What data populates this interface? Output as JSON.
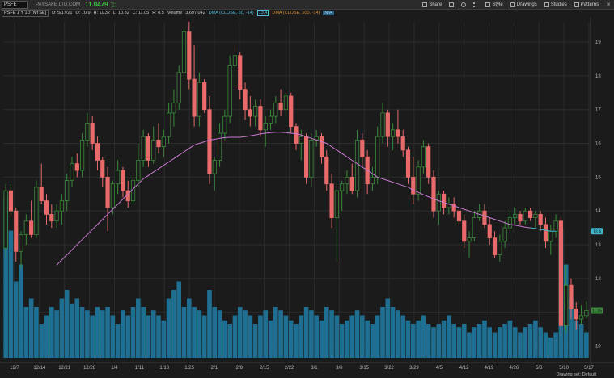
{
  "toolbar": {
    "symbol": "PSFE",
    "company": "PAYSAFE LTD.COM",
    "price": "11.0479",
    "change_top": "+0.2",
    "change_bottom": "+0.1",
    "buttons": [
      "Share",
      "Style",
      "Drawings",
      "Studies",
      "Patterns"
    ],
    "icons": [
      "share-icon",
      "bell-icon",
      "gear-icon",
      "more-icon",
      "style-icon",
      "drawings-icon",
      "studies-icon",
      "patterns-icon",
      "close-icon"
    ]
  },
  "infobar": {
    "label": "PSFE 1 Y 1D [NYSE]",
    "date": "D: 5/17/21",
    "open": "O: 10.9",
    "high": "H: 11.32",
    "low": "L: 10.82",
    "close": "C: 11.05",
    "range": "R: 0.5",
    "volume_label": "Volume",
    "volume": "3,697,042",
    "study1": "DMA (CLOSE, 50, -14)",
    "study1_value": "13.4",
    "study2": "DMA (CLOSE, 200, -14)",
    "study2_value": "N/A"
  },
  "footer": {
    "drawing_set": "Drawing set: Default"
  },
  "colors": {
    "up": "#3a8a3a",
    "down": "#e86a6a",
    "volume": "#1f6f92",
    "dma": "#c77ad0",
    "dma_tail": "#3fb6cf"
  },
  "chart_data": {
    "type": "candlestick",
    "x_tick_labels": [
      "12/7",
      "12/14",
      "12/21",
      "12/28",
      "1/4",
      "1/11",
      "1/18",
      "1/25",
      "2/1",
      "2/8",
      "2/15",
      "2/22",
      "3/1",
      "3/8",
      "3/15",
      "3/22",
      "3/29",
      "4/5",
      "4/12",
      "4/19",
      "4/26",
      "5/3",
      "5/10",
      "5/17"
    ],
    "y_ticks": [
      10,
      11,
      12,
      13,
      14,
      15,
      16,
      17,
      18,
      19
    ],
    "ylim": [
      9.7,
      19.6
    ],
    "price_tags": {
      "dma_last": "13.4",
      "last_price": "11.05"
    },
    "ohlc": [
      [
        12.9,
        14.8,
        12.6,
        14.6
      ],
      [
        14.6,
        14.8,
        13.8,
        14.0
      ],
      [
        14.0,
        14.1,
        12.5,
        12.8
      ],
      [
        12.8,
        13.4,
        12.3,
        13.3
      ],
      [
        13.3,
        13.9,
        13.0,
        13.7
      ],
      [
        13.7,
        14.3,
        13.2,
        13.3
      ],
      [
        13.3,
        14.9,
        13.2,
        14.7
      ],
      [
        14.7,
        15.4,
        14.2,
        14.3
      ],
      [
        14.3,
        14.5,
        13.6,
        13.9
      ],
      [
        13.9,
        14.2,
        13.5,
        13.7
      ],
      [
        13.7,
        14.2,
        13.5,
        14.0
      ],
      [
        14.0,
        14.5,
        13.6,
        14.3
      ],
      [
        14.3,
        15.1,
        14.0,
        14.9
      ],
      [
        14.9,
        15.6,
        14.7,
        15.4
      ],
      [
        15.4,
        15.7,
        15.0,
        15.2
      ],
      [
        15.2,
        16.3,
        15.0,
        16.1
      ],
      [
        16.1,
        16.9,
        15.9,
        16.6
      ],
      [
        16.6,
        16.8,
        15.8,
        16.0
      ],
      [
        16.0,
        16.2,
        15.2,
        15.5
      ],
      [
        15.5,
        15.6,
        14.7,
        15.0
      ],
      [
        15.0,
        15.3,
        13.4,
        14.1
      ],
      [
        14.1,
        14.9,
        13.9,
        14.8
      ],
      [
        14.8,
        15.5,
        14.5,
        15.2
      ],
      [
        15.2,
        15.3,
        14.4,
        14.6
      ],
      [
        14.6,
        14.9,
        14.1,
        14.3
      ],
      [
        14.3,
        15.1,
        14.2,
        14.9
      ],
      [
        14.9,
        16.0,
        14.7,
        15.5
      ],
      [
        15.5,
        16.4,
        15.3,
        16.2
      ],
      [
        16.2,
        16.3,
        15.3,
        15.5
      ],
      [
        15.5,
        16.5,
        15.4,
        16.1
      ],
      [
        16.1,
        16.6,
        15.7,
        15.9
      ],
      [
        15.9,
        16.4,
        15.6,
        16.2
      ],
      [
        16.2,
        17.2,
        16.0,
        16.9
      ],
      [
        16.9,
        17.6,
        16.5,
        17.2
      ],
      [
        17.2,
        18.3,
        17.0,
        18.1
      ],
      [
        18.1,
        19.4,
        17.9,
        19.3
      ],
      [
        19.3,
        19.6,
        17.6,
        17.9
      ],
      [
        17.9,
        18.9,
        16.5,
        16.8
      ],
      [
        16.8,
        18.1,
        16.5,
        17.8
      ],
      [
        17.8,
        17.9,
        16.9,
        17.0
      ],
      [
        17.0,
        17.4,
        14.8,
        15.1
      ],
      [
        15.1,
        15.6,
        14.6,
        15.5
      ],
      [
        15.5,
        16.6,
        15.3,
        16.3
      ],
      [
        16.3,
        17.0,
        16.1,
        16.8
      ],
      [
        16.8,
        18.6,
        16.6,
        18.3
      ],
      [
        18.3,
        18.9,
        17.7,
        18.6
      ],
      [
        18.6,
        18.7,
        17.3,
        17.6
      ],
      [
        17.6,
        17.8,
        16.7,
        17.0
      ],
      [
        17.0,
        17.4,
        16.5,
        16.8
      ],
      [
        16.8,
        17.3,
        16.5,
        17.1
      ],
      [
        17.1,
        17.3,
        16.2,
        16.4
      ],
      [
        16.4,
        16.8,
        15.9,
        16.6
      ],
      [
        16.6,
        17.0,
        16.4,
        16.8
      ],
      [
        16.8,
        17.4,
        16.6,
        17.2
      ],
      [
        17.2,
        17.6,
        16.8,
        17.0
      ],
      [
        17.0,
        17.5,
        16.8,
        17.4
      ],
      [
        17.4,
        17.5,
        16.3,
        16.5
      ],
      [
        16.5,
        16.6,
        15.8,
        16.0
      ],
      [
        16.0,
        16.4,
        15.5,
        16.2
      ],
      [
        16.2,
        16.3,
        14.8,
        15.0
      ],
      [
        15.0,
        16.3,
        14.7,
        16.1
      ],
      [
        16.1,
        16.4,
        15.9,
        16.2
      ],
      [
        16.2,
        16.3,
        15.4,
        15.6
      ],
      [
        15.6,
        15.8,
        14.6,
        14.8
      ],
      [
        14.8,
        15.1,
        13.5,
        13.8
      ],
      [
        13.8,
        14.8,
        12.5,
        14.6
      ],
      [
        14.6,
        14.9,
        14.0,
        14.8
      ],
      [
        14.8,
        15.2,
        14.5,
        15.0
      ],
      [
        15.0,
        15.4,
        14.5,
        14.6
      ],
      [
        14.6,
        16.4,
        14.4,
        16.1
      ],
      [
        16.1,
        16.3,
        15.3,
        15.6
      ],
      [
        15.6,
        15.8,
        14.5,
        14.8
      ],
      [
        14.8,
        15.3,
        14.6,
        15.0
      ],
      [
        15.0,
        16.5,
        14.8,
        16.2
      ],
      [
        16.2,
        17.2,
        16.0,
        16.9
      ],
      [
        16.9,
        17.0,
        15.9,
        16.2
      ],
      [
        16.2,
        16.6,
        15.8,
        16.4
      ],
      [
        16.4,
        17.0,
        16.0,
        16.2
      ],
      [
        16.2,
        16.4,
        15.6,
        15.8
      ],
      [
        15.8,
        15.9,
        14.8,
        15.0
      ],
      [
        15.0,
        15.6,
        14.2,
        14.5
      ],
      [
        14.5,
        15.5,
        14.3,
        15.3
      ],
      [
        15.3,
        16.1,
        15.1,
        15.9
      ],
      [
        15.9,
        16.0,
        14.8,
        15.0
      ],
      [
        15.0,
        15.2,
        13.8,
        14.0
      ],
      [
        14.0,
        14.6,
        13.6,
        14.5
      ],
      [
        14.5,
        14.6,
        13.9,
        14.1
      ],
      [
        14.1,
        14.4,
        13.9,
        14.2
      ],
      [
        14.2,
        14.4,
        13.8,
        14.0
      ],
      [
        14.0,
        14.3,
        13.6,
        13.7
      ],
      [
        13.7,
        13.9,
        12.9,
        13.1
      ],
      [
        13.1,
        13.4,
        12.6,
        13.2
      ],
      [
        13.2,
        14.0,
        13.1,
        13.8
      ],
      [
        13.8,
        14.2,
        13.7,
        14.0
      ],
      [
        14.0,
        14.2,
        13.5,
        13.6
      ],
      [
        13.6,
        13.8,
        13.0,
        13.2
      ],
      [
        13.2,
        13.4,
        12.6,
        12.7
      ],
      [
        12.7,
        13.3,
        12.5,
        13.1
      ],
      [
        13.1,
        13.7,
        12.9,
        13.5
      ],
      [
        13.5,
        14.0,
        13.4,
        13.8
      ],
      [
        13.8,
        14.1,
        13.6,
        13.9
      ],
      [
        13.9,
        14.0,
        13.6,
        13.7
      ],
      [
        13.7,
        14.1,
        13.6,
        14.0
      ],
      [
        14.0,
        14.1,
        13.7,
        13.8
      ],
      [
        13.8,
        14.0,
        13.5,
        13.9
      ],
      [
        13.9,
        14.0,
        13.4,
        13.6
      ],
      [
        13.6,
        13.8,
        12.9,
        13.1
      ],
      [
        13.1,
        13.6,
        12.7,
        13.4
      ],
      [
        13.4,
        13.9,
        13.2,
        13.7
      ],
      [
        13.7,
        13.8,
        10.3,
        10.6
      ],
      [
        10.6,
        12.4,
        10.4,
        11.8
      ],
      [
        11.8,
        12.0,
        10.8,
        11.1
      ],
      [
        11.1,
        11.3,
        10.5,
        10.8
      ],
      [
        10.8,
        11.2,
        10.6,
        10.9
      ],
      [
        10.9,
        11.32,
        10.82,
        11.05
      ]
    ],
    "volume_relative": [
      0.95,
      0.75,
      0.45,
      0.55,
      0.3,
      0.35,
      0.3,
      0.2,
      0.25,
      0.3,
      0.28,
      0.35,
      0.4,
      0.32,
      0.35,
      0.3,
      0.28,
      0.25,
      0.3,
      0.28,
      0.3,
      0.25,
      0.2,
      0.28,
      0.25,
      0.3,
      0.35,
      0.3,
      0.25,
      0.28,
      0.25,
      0.22,
      0.35,
      0.4,
      0.45,
      0.3,
      0.35,
      0.3,
      0.28,
      0.25,
      0.4,
      0.3,
      0.28,
      0.22,
      0.2,
      0.25,
      0.3,
      0.28,
      0.25,
      0.2,
      0.25,
      0.28,
      0.22,
      0.3,
      0.28,
      0.25,
      0.22,
      0.2,
      0.25,
      0.3,
      0.28,
      0.25,
      0.22,
      0.3,
      0.28,
      0.25,
      0.2,
      0.22,
      0.25,
      0.28,
      0.25,
      0.22,
      0.2,
      0.25,
      0.3,
      0.35,
      0.3,
      0.28,
      0.25,
      0.22,
      0.2,
      0.22,
      0.25,
      0.2,
      0.18,
      0.2,
      0.22,
      0.25,
      0.2,
      0.18,
      0.2,
      0.15,
      0.18,
      0.2,
      0.22,
      0.18,
      0.15,
      0.18,
      0.2,
      0.22,
      0.18,
      0.15,
      0.18,
      0.2,
      0.22,
      0.18,
      0.15,
      0.12,
      0.15,
      0.75,
      0.55,
      0.35,
      0.22,
      0.2,
      0.15
    ],
    "dma_50": [
      null,
      null,
      null,
      null,
      null,
      null,
      null,
      null,
      null,
      null,
      12.4,
      12.55,
      12.7,
      12.85,
      13.0,
      13.15,
      13.3,
      13.45,
      13.6,
      13.75,
      13.9,
      14.05,
      14.2,
      14.35,
      14.5,
      14.65,
      14.8,
      14.95,
      15.05,
      15.15,
      15.25,
      15.35,
      15.45,
      15.55,
      15.65,
      15.75,
      15.85,
      15.95,
      16.0,
      16.05,
      16.1,
      16.12,
      16.15,
      16.17,
      16.18,
      16.18,
      16.18,
      16.2,
      16.22,
      16.25,
      16.28,
      16.3,
      16.32,
      16.33,
      16.33,
      16.32,
      16.3,
      16.28,
      16.25,
      16.2,
      16.15,
      16.1,
      16.05,
      16.0,
      15.9,
      15.8,
      15.7,
      15.6,
      15.5,
      15.4,
      15.3,
      15.2,
      15.1,
      15.0,
      14.95,
      14.9,
      14.85,
      14.8,
      14.75,
      14.7,
      14.62,
      14.55,
      14.48,
      14.42,
      14.36,
      14.3,
      14.25,
      14.2,
      14.15,
      14.1,
      14.05,
      14.0,
      13.95,
      13.9,
      13.85,
      13.8,
      13.75,
      13.7,
      13.65,
      13.6,
      13.58,
      13.55,
      13.52,
      13.5,
      13.48,
      13.45,
      13.43,
      13.4,
      13.4
    ]
  }
}
